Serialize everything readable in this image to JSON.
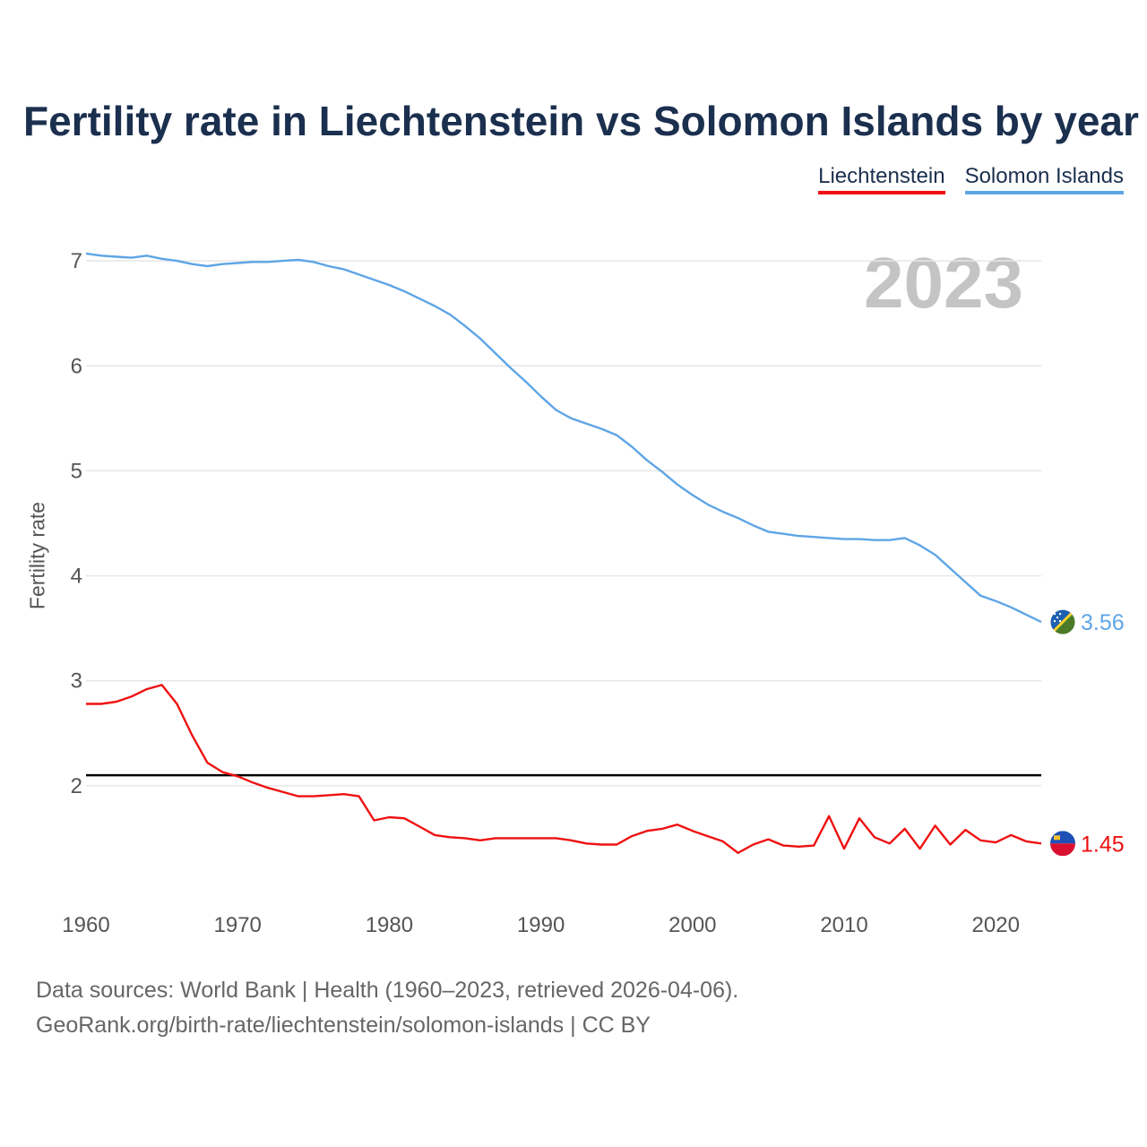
{
  "title": "Fertility rate in Liechtenstein vs Solomon Islands by year",
  "legend": [
    {
      "label": "Liechtenstein",
      "color": "#ee1111"
    },
    {
      "label": "Solomon Islands",
      "color": "#5ea5e6"
    }
  ],
  "year_display": "2023",
  "source_line1": "Data sources: World Bank | Health (1960–2023, retrieved 2026-04-06).",
  "source_line2": "GeoRank.org/birth-rate/liechtenstein/solomon-islands | CC BY",
  "chart_data": {
    "type": "line",
    "title": "Fertility rate in Liechtenstein vs Solomon Islands by year",
    "xlabel": "",
    "ylabel": "Fertility rate",
    "xlim": [
      1960,
      2023
    ],
    "ylim": [
      1.0,
      7.3
    ],
    "grid": true,
    "legend_position": "top-right",
    "x_ticks": [
      1960,
      1970,
      1980,
      1990,
      2000,
      2010,
      2020
    ],
    "y_ticks": [
      2,
      3,
      4,
      5,
      6,
      7
    ],
    "reference_line": {
      "y": 2.1,
      "color": "#000000"
    },
    "x": [
      1960,
      1961,
      1962,
      1963,
      1964,
      1965,
      1966,
      1967,
      1968,
      1969,
      1970,
      1971,
      1972,
      1973,
      1974,
      1975,
      1976,
      1977,
      1978,
      1979,
      1980,
      1981,
      1982,
      1983,
      1984,
      1985,
      1986,
      1987,
      1988,
      1989,
      1990,
      1991,
      1992,
      1993,
      1994,
      1995,
      1996,
      1997,
      1998,
      1999,
      2000,
      2001,
      2002,
      2003,
      2004,
      2005,
      2006,
      2007,
      2008,
      2009,
      2010,
      2011,
      2012,
      2013,
      2014,
      2015,
      2016,
      2017,
      2018,
      2019,
      2020,
      2021,
      2022,
      2023
    ],
    "series": [
      {
        "name": "Liechtenstein",
        "color": "#ee1111",
        "end_label": "1.45",
        "values": [
          2.78,
          2.78,
          2.8,
          2.85,
          2.92,
          2.96,
          2.78,
          2.48,
          2.22,
          2.13,
          2.09,
          2.03,
          1.98,
          1.94,
          1.9,
          1.9,
          1.91,
          1.92,
          1.9,
          1.67,
          1.7,
          1.69,
          1.61,
          1.53,
          1.51,
          1.5,
          1.48,
          1.5,
          1.5,
          1.5,
          1.5,
          1.5,
          1.48,
          1.45,
          1.44,
          1.44,
          1.52,
          1.57,
          1.59,
          1.63,
          1.57,
          1.52,
          1.47,
          1.36,
          1.44,
          1.49,
          1.43,
          1.42,
          1.43,
          1.71,
          1.4,
          1.69,
          1.51,
          1.45,
          1.59,
          1.4,
          1.62,
          1.44,
          1.58,
          1.48,
          1.46,
          1.53,
          1.47,
          1.45
        ]
      },
      {
        "name": "Solomon Islands",
        "color": "#5ea5e6",
        "end_label": "3.56",
        "values": [
          7.07,
          7.05,
          7.04,
          7.03,
          7.05,
          7.02,
          7.0,
          6.97,
          6.95,
          6.97,
          6.98,
          6.99,
          6.99,
          7.0,
          7.01,
          6.99,
          6.95,
          6.92,
          6.87,
          6.82,
          6.77,
          6.71,
          6.64,
          6.57,
          6.49,
          6.38,
          6.26,
          6.12,
          5.98,
          5.85,
          5.71,
          5.58,
          5.5,
          5.45,
          5.4,
          5.34,
          5.23,
          5.1,
          4.99,
          4.87,
          4.77,
          4.68,
          4.61,
          4.55,
          4.48,
          4.42,
          4.4,
          4.38,
          4.37,
          4.36,
          4.35,
          4.35,
          4.34,
          4.34,
          4.36,
          4.29,
          4.2,
          4.07,
          3.94,
          3.81,
          3.76,
          3.7,
          3.63,
          3.56
        ]
      }
    ]
  }
}
